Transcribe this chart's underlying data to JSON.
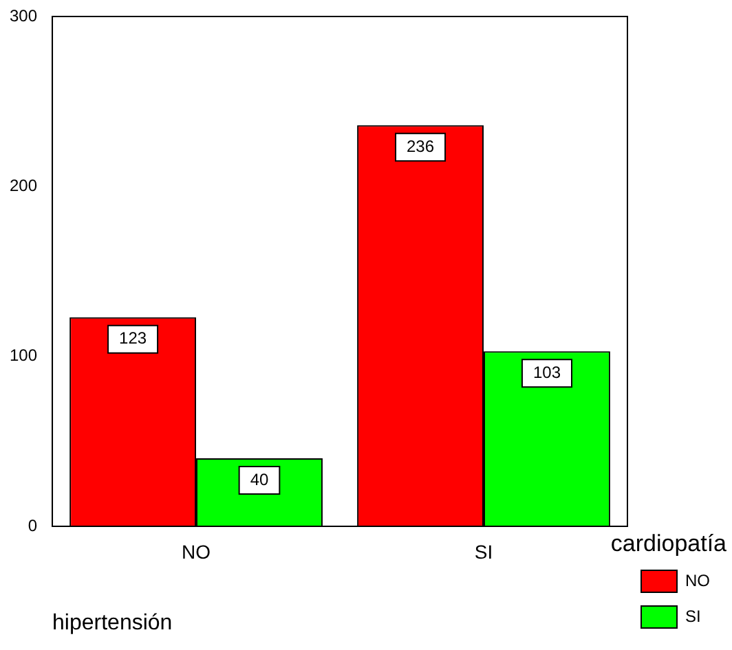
{
  "chart_data": {
    "type": "bar",
    "xlabel": "hipertensión",
    "legend_title": "cardiopatía",
    "categories": [
      "NO",
      "SI"
    ],
    "series": [
      {
        "name": "NO",
        "color": "#ff0000",
        "values": [
          123,
          236
        ]
      },
      {
        "name": "SI",
        "color": "#00ff00",
        "values": [
          40,
          103
        ]
      }
    ],
    "ylim": [
      0,
      300
    ],
    "yticks": [
      0,
      100,
      200,
      300
    ],
    "grid": false,
    "legend": "right",
    "data_labels": true
  }
}
